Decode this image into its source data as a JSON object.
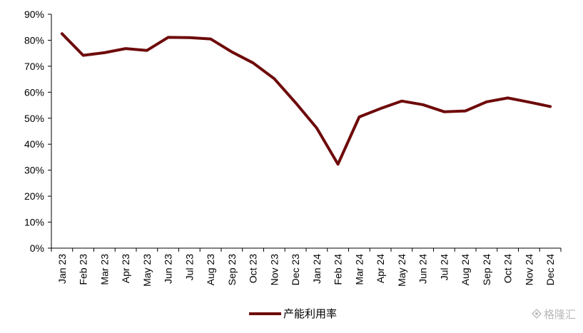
{
  "chart_data": {
    "type": "line",
    "title": "",
    "xlabel": "",
    "ylabel": "",
    "x": [
      "Jan 23",
      "Feb 23",
      "Mar 23",
      "Apr 23",
      "May 23",
      "Jun 23",
      "Jul 23",
      "Aug 23",
      "Sep 23",
      "Oct 23",
      "Nov 23",
      "Dec 23",
      "Jan 24",
      "Feb 24",
      "Mar 24",
      "Apr 24",
      "May 24",
      "Jun 24",
      "Jul 24",
      "Aug 24",
      "Sep 24",
      "Oct 24",
      "Nov 24",
      "Dec 24"
    ],
    "series": [
      {
        "name": "产能利用率",
        "color": "#6e0a0a",
        "values": [
          82.5,
          74.2,
          75.2,
          76.8,
          76.1,
          81.1,
          81.0,
          80.5,
          75.5,
          71.3,
          65.2,
          56.0,
          46.2,
          32.3,
          50.5,
          53.7,
          56.6,
          55.2,
          52.5,
          52.8,
          56.3,
          57.8,
          56.2,
          54.5
        ]
      }
    ],
    "ylim": [
      0,
      90
    ],
    "y_ticks": [
      "0%",
      "10%",
      "20%",
      "30%",
      "40%",
      "50%",
      "60%",
      "70%",
      "80%",
      "90%"
    ],
    "grid": false,
    "legend_position": "bottom-center"
  },
  "watermark": {
    "text": "格隆汇",
    "icon": "watermark-logo-icon"
  }
}
